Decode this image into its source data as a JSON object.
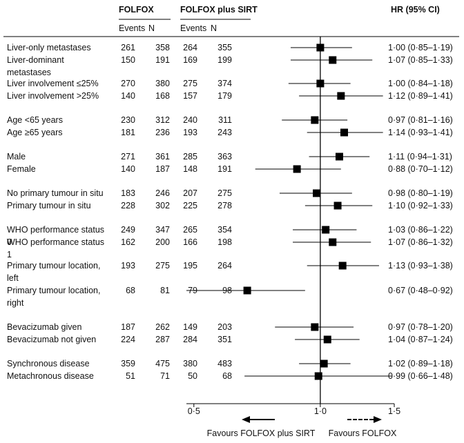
{
  "chart_data": {
    "type": "forest",
    "groups": [
      "FOLFOX",
      "FOLFOX plus SIRT"
    ],
    "subheaders": [
      "Events",
      "N",
      "Events",
      "N"
    ],
    "hr_header": "HR (95% CI)",
    "log_scale": true,
    "xlim": [
      0.48,
      1.5
    ],
    "xticks": [
      {
        "value": 0.5,
        "label": "0·5"
      },
      {
        "value": 1.0,
        "label": "1·0"
      },
      {
        "value": 1.5,
        "label": "1·5"
      }
    ],
    "reference": 1.0,
    "color": "#000000",
    "favours_left": "Favours FOLFOX plus SIRT",
    "favours_right": "Favours FOLFOX",
    "rows": [
      {
        "label": "Liver-only metastases",
        "folfox_events": 261,
        "folfox_n": 358,
        "sirt_events": 264,
        "sirt_n": 355,
        "hr": 1.0,
        "lo": 0.85,
        "hi": 1.19,
        "hr_label": "1·00 (0·85–1·19)"
      },
      {
        "label": "Liver-dominant metastases",
        "folfox_events": 150,
        "folfox_n": 191,
        "sirt_events": 169,
        "sirt_n": 199,
        "hr": 1.07,
        "lo": 0.85,
        "hi": 1.33,
        "hr_label": "1·07 (0·85–1·33)"
      },
      {
        "label": "Liver involvement ≤25%",
        "folfox_events": 270,
        "folfox_n": 380,
        "sirt_events": 275,
        "sirt_n": 374,
        "hr": 1.0,
        "lo": 0.84,
        "hi": 1.18,
        "hr_label": "1·00 (0·84–1·18)"
      },
      {
        "label": "Liver involvement >25%",
        "folfox_events": 140,
        "folfox_n": 168,
        "sirt_events": 157,
        "sirt_n": 179,
        "hr": 1.12,
        "lo": 0.89,
        "hi": 1.41,
        "hr_label": "1·12 (0·89–1·41)"
      },
      {
        "label": "Age <65 years",
        "folfox_events": 230,
        "folfox_n": 312,
        "sirt_events": 240,
        "sirt_n": 311,
        "hr": 0.97,
        "lo": 0.81,
        "hi": 1.16,
        "hr_label": "0·97 (0·81–1·16)"
      },
      {
        "label": "Age ≥65 years",
        "folfox_events": 181,
        "folfox_n": 236,
        "sirt_events": 193,
        "sirt_n": 243,
        "hr": 1.14,
        "lo": 0.93,
        "hi": 1.41,
        "hr_label": "1·14 (0·93–1·41)"
      },
      {
        "label": "Male",
        "folfox_events": 271,
        "folfox_n": 361,
        "sirt_events": 285,
        "sirt_n": 363,
        "hr": 1.11,
        "lo": 0.94,
        "hi": 1.31,
        "hr_label": "1·11 (0·94–1·31)"
      },
      {
        "label": "Female",
        "folfox_events": 140,
        "folfox_n": 187,
        "sirt_events": 148,
        "sirt_n": 191,
        "hr": 0.88,
        "lo": 0.7,
        "hi": 1.12,
        "hr_label": "0·88 (0·70–1·12)"
      },
      {
        "label": "No primary tumour in situ",
        "folfox_events": 183,
        "folfox_n": 246,
        "sirt_events": 207,
        "sirt_n": 275,
        "hr": 0.98,
        "lo": 0.8,
        "hi": 1.19,
        "hr_label": "0·98 (0·80–1·19)"
      },
      {
        "label": "Primary tumour in situ",
        "folfox_events": 228,
        "folfox_n": 302,
        "sirt_events": 225,
        "sirt_n": 278,
        "hr": 1.1,
        "lo": 0.92,
        "hi": 1.33,
        "hr_label": "1·10 (0·92–1·33)"
      },
      {
        "label": "WHO performance status 0",
        "folfox_events": 249,
        "folfox_n": 347,
        "sirt_events": 265,
        "sirt_n": 354,
        "hr": 1.03,
        "lo": 0.86,
        "hi": 1.22,
        "hr_label": "1·03 (0·86–1·22)"
      },
      {
        "label": "WHO performance status 1",
        "folfox_events": 162,
        "folfox_n": 200,
        "sirt_events": 166,
        "sirt_n": 198,
        "hr": 1.07,
        "lo": 0.86,
        "hi": 1.32,
        "hr_label": "1·07 (0·86–1·32)"
      },
      {
        "label": "Primary tumour location, left",
        "folfox_events": 193,
        "folfox_n": 275,
        "sirt_events": 195,
        "sirt_n": 264,
        "hr": 1.13,
        "lo": 0.93,
        "hi": 1.38,
        "hr_label": "1·13 (0·93–1·38)"
      },
      {
        "label": "Primary tumour location, right",
        "folfox_events": 68,
        "folfox_n": 81,
        "sirt_events": 79,
        "sirt_n": 98,
        "hr": 0.67,
        "lo": 0.48,
        "hi": 0.92,
        "hr_label": "0·67 (0·48–0·92)"
      },
      {
        "label": "Bevacizumab given",
        "folfox_events": 187,
        "folfox_n": 262,
        "sirt_events": 149,
        "sirt_n": 203,
        "hr": 0.97,
        "lo": 0.78,
        "hi": 1.2,
        "hr_label": "0·97 (0·78–1·20)"
      },
      {
        "label": "Bevacizumab not given",
        "folfox_events": 224,
        "folfox_n": 287,
        "sirt_events": 284,
        "sirt_n": 351,
        "hr": 1.04,
        "lo": 0.87,
        "hi": 1.24,
        "hr_label": "1·04 (0·87–1·24)"
      },
      {
        "label": "Synchronous disease",
        "folfox_events": 359,
        "folfox_n": 475,
        "sirt_events": 380,
        "sirt_n": 483,
        "hr": 1.02,
        "lo": 0.89,
        "hi": 1.18,
        "hr_label": "1·02 (0·89–1·18)"
      },
      {
        "label": "Metachronous disease",
        "folfox_events": 51,
        "folfox_n": 71,
        "sirt_events": 50,
        "sirt_n": 68,
        "hr": 0.99,
        "lo": 0.66,
        "hi": 1.48,
        "hr_label": "0·99 (0·66–1·48)"
      }
    ]
  }
}
